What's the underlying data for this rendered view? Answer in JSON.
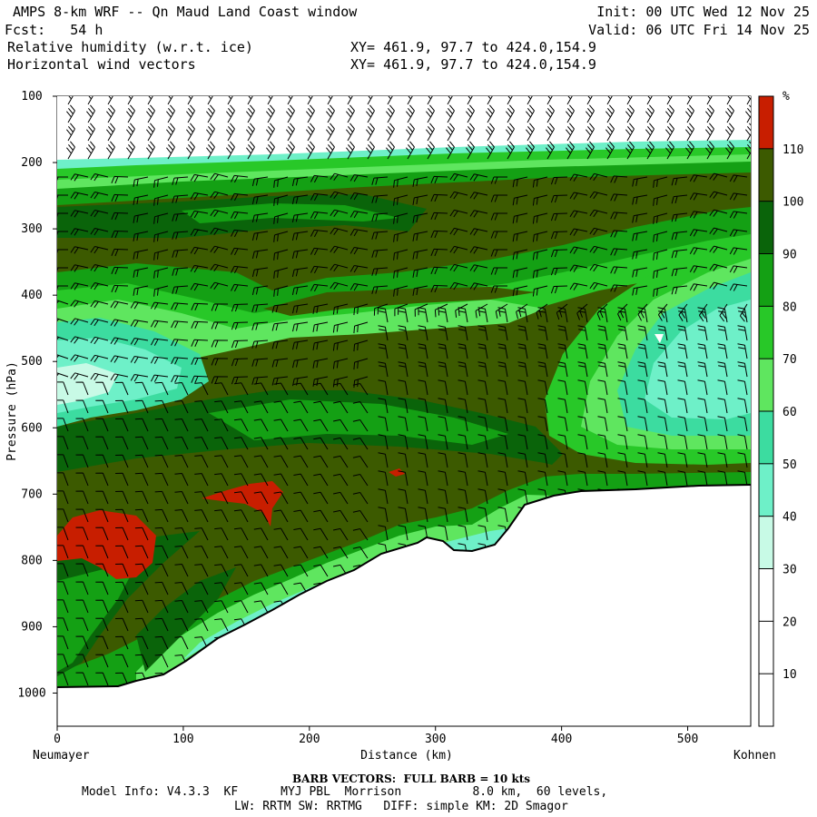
{
  "header": {
    "title": "AMPS 8-km WRF -- Qn Maud Land Coast window",
    "forecast": "Fcst:   54 h",
    "field1": "Relative humidity (w.r.t. ice)",
    "field2": "Horizontal wind vectors",
    "xy1": "XY= 461.9, 97.7 to 424.0,154.9",
    "xy2": "XY= 461.9, 97.7 to 424.0,154.9",
    "init": "Init: 00 UTC Wed 12 Nov 25",
    "valid": "Valid: 06 UTC Fri 14 Nov 25"
  },
  "footer": {
    "barb_note": "BARB VECTORS:  FULL BARB = 10 kts",
    "model_line1": "Model Info: V4.3.3  KF      MYJ PBL  Morrison          8.0 km,  60 levels,",
    "model_line2": "LW: RRTM SW: RRTMG   DIFF: simple KM: 2D Smagor"
  },
  "chart_data": {
    "type": "heatmap",
    "title": "Relative humidity (w.r.t. ice)",
    "xlabel": "Distance (km)",
    "ylabel": "Pressure (hPa)",
    "x_start_label": "Neumayer",
    "x_end_label": "Kohnen",
    "xlim": [
      0,
      550
    ],
    "ylim": [
      1050,
      100
    ],
    "x_ticks": [
      0,
      100,
      200,
      300,
      400,
      500
    ],
    "y_ticks": [
      100,
      200,
      300,
      400,
      500,
      600,
      700,
      800,
      900,
      1000
    ],
    "colorbar": {
      "unit": "%",
      "levels": [
        10,
        20,
        30,
        40,
        50,
        60,
        70,
        80,
        90,
        100,
        110
      ],
      "colors": [
        "#ffffff",
        "#ffffff",
        "#ffffff",
        "#c8fae6",
        "#6ef0c8",
        "#3cdca0",
        "#5fe65f",
        "#28c828",
        "#14a014",
        "#0a640a",
        "#3c5a00",
        "#c81e00"
      ]
    },
    "terrain_surface_hPa": [
      [
        0,
        993
      ],
      [
        50,
        993
      ],
      [
        80,
        985
      ],
      [
        100,
        972
      ],
      [
        130,
        948
      ],
      [
        160,
        925
      ],
      [
        200,
        878
      ],
      [
        240,
        830
      ],
      [
        270,
        798
      ],
      [
        300,
        773
      ],
      [
        315,
        795
      ],
      [
        330,
        798
      ],
      [
        350,
        765
      ],
      [
        370,
        725
      ],
      [
        400,
        708
      ],
      [
        450,
        697
      ],
      [
        500,
        693
      ],
      [
        550,
        687
      ]
    ],
    "wind_barbs_note": "FULL BARB = 10 kts"
  }
}
